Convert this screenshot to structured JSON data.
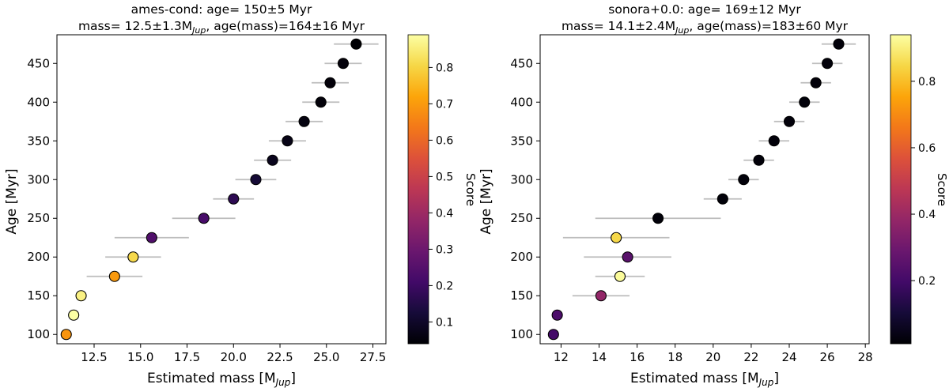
{
  "chart_data": [
    {
      "type": "scatter",
      "title_line1": "ames-cond: age= 150±5 Myr",
      "title_line2_prefix": "mass= 12.5±1.3M",
      "title_line2_sub": "Jup",
      "title_line2_suffix": ", age(mass)=164±16 Myr",
      "xlabel": "Estimated mass [M",
      "xlabel_sub": "Jup",
      "xlabel_end": "]",
      "ylabel": "Age [Myr]",
      "xlim": [
        10.5,
        28.2
      ],
      "ylim": [
        88,
        487
      ],
      "xticks": [
        12.5,
        15.0,
        17.5,
        20.0,
        22.5,
        25.0,
        27.5
      ],
      "xtick_labels": [
        "12.5",
        "15.0",
        "17.5",
        "20.0",
        "22.5",
        "25.0",
        "27.5"
      ],
      "yticks": [
        100,
        150,
        200,
        250,
        300,
        350,
        400,
        450
      ],
      "ytick_labels": [
        "100",
        "150",
        "200",
        "250",
        "300",
        "350",
        "400",
        "450"
      ],
      "colorbar": {
        "label": "Score",
        "range": [
          0.04,
          0.89
        ],
        "ticks": [
          0.1,
          0.2,
          0.3,
          0.4,
          0.5,
          0.6,
          0.7,
          0.8
        ],
        "tick_labels": [
          "0.1",
          "0.2",
          "0.3",
          "0.4",
          "0.5",
          "0.6",
          "0.7",
          "0.8"
        ]
      },
      "points": [
        {
          "age": 100,
          "mass": 11.0,
          "err": 0,
          "score": 0.69
        },
        {
          "age": 125,
          "mass": 11.4,
          "err": 0,
          "score": 0.89
        },
        {
          "age": 150,
          "mass": 11.8,
          "err": 0,
          "score": 0.86
        },
        {
          "age": 175,
          "mass": 13.6,
          "err": 1.5,
          "score": 0.7
        },
        {
          "age": 200,
          "mass": 14.6,
          "err": 1.5,
          "score": 0.81
        },
        {
          "age": 225,
          "mass": 15.6,
          "err": 2.0,
          "score": 0.24
        },
        {
          "age": 250,
          "mass": 18.4,
          "err": 1.7,
          "score": 0.22
        },
        {
          "age": 275,
          "mass": 20.0,
          "err": 1.1,
          "score": 0.17
        },
        {
          "age": 300,
          "mass": 21.2,
          "err": 1.1,
          "score": 0.12
        },
        {
          "age": 325,
          "mass": 22.1,
          "err": 1.0,
          "score": 0.08
        },
        {
          "age": 350,
          "mass": 22.9,
          "err": 1.0,
          "score": 0.07
        },
        {
          "age": 375,
          "mass": 23.8,
          "err": 1.0,
          "score": 0.06
        },
        {
          "age": 400,
          "mass": 24.7,
          "err": 1.0,
          "score": 0.05
        },
        {
          "age": 425,
          "mass": 25.2,
          "err": 1.0,
          "score": 0.05
        },
        {
          "age": 450,
          "mass": 25.9,
          "err": 1.0,
          "score": 0.05
        },
        {
          "age": 475,
          "mass": 26.6,
          "err": 1.2,
          "score": 0.04
        }
      ]
    },
    {
      "type": "scatter",
      "title_line1": "sonora+0.0: age= 169±12 Myr",
      "title_line2_prefix": "mass= 14.1±2.4M",
      "title_line2_sub": "Jup",
      "title_line2_suffix": ", age(mass)=183±60 Myr",
      "xlabel": "Estimated mass [M",
      "xlabel_sub": "Jup",
      "xlabel_end": "]",
      "ylabel": "Age [Myr]",
      "xlim": [
        10.9,
        28.2
      ],
      "ylim": [
        88,
        487
      ],
      "xticks": [
        12,
        14,
        16,
        18,
        20,
        22,
        24,
        26,
        28
      ],
      "xtick_labels": [
        "12",
        "14",
        "16",
        "18",
        "20",
        "22",
        "24",
        "26",
        "28"
      ],
      "yticks": [
        100,
        150,
        200,
        250,
        300,
        350,
        400,
        450
      ],
      "ytick_labels": [
        "100",
        "150",
        "200",
        "250",
        "300",
        "350",
        "400",
        "450"
      ],
      "colorbar": {
        "label": "Score",
        "range": [
          0.01,
          0.94
        ],
        "ticks": [
          0.2,
          0.4,
          0.6,
          0.8
        ],
        "tick_labels": [
          "0.2",
          "0.4",
          "0.6",
          "0.8"
        ]
      },
      "points": [
        {
          "age": 100,
          "mass": 11.6,
          "err": 0,
          "score": 0.2
        },
        {
          "age": 125,
          "mass": 11.8,
          "err": 0,
          "score": 0.22
        },
        {
          "age": 150,
          "mass": 14.1,
          "err": 1.5,
          "score": 0.38
        },
        {
          "age": 175,
          "mass": 15.1,
          "err": 1.3,
          "score": 0.93
        },
        {
          "age": 200,
          "mass": 15.5,
          "err": 2.3,
          "score": 0.25
        },
        {
          "age": 225,
          "mass": 14.9,
          "err": 2.8,
          "score": 0.85
        },
        {
          "age": 250,
          "mass": 17.1,
          "err": 3.3,
          "score": 0.02
        },
        {
          "age": 275,
          "mass": 20.5,
          "err": 1.0,
          "score": 0.02
        },
        {
          "age": 300,
          "mass": 21.6,
          "err": 0.8,
          "score": 0.02
        },
        {
          "age": 325,
          "mass": 22.4,
          "err": 0.8,
          "score": 0.02
        },
        {
          "age": 350,
          "mass": 23.2,
          "err": 0.8,
          "score": 0.02
        },
        {
          "age": 375,
          "mass": 24.0,
          "err": 0.8,
          "score": 0.02
        },
        {
          "age": 400,
          "mass": 24.8,
          "err": 0.8,
          "score": 0.02
        },
        {
          "age": 425,
          "mass": 25.4,
          "err": 0.8,
          "score": 0.02
        },
        {
          "age": 450,
          "mass": 26.0,
          "err": 0.8,
          "score": 0.02
        },
        {
          "age": 475,
          "mass": 26.6,
          "err": 0.9,
          "score": 0.02
        }
      ]
    }
  ]
}
